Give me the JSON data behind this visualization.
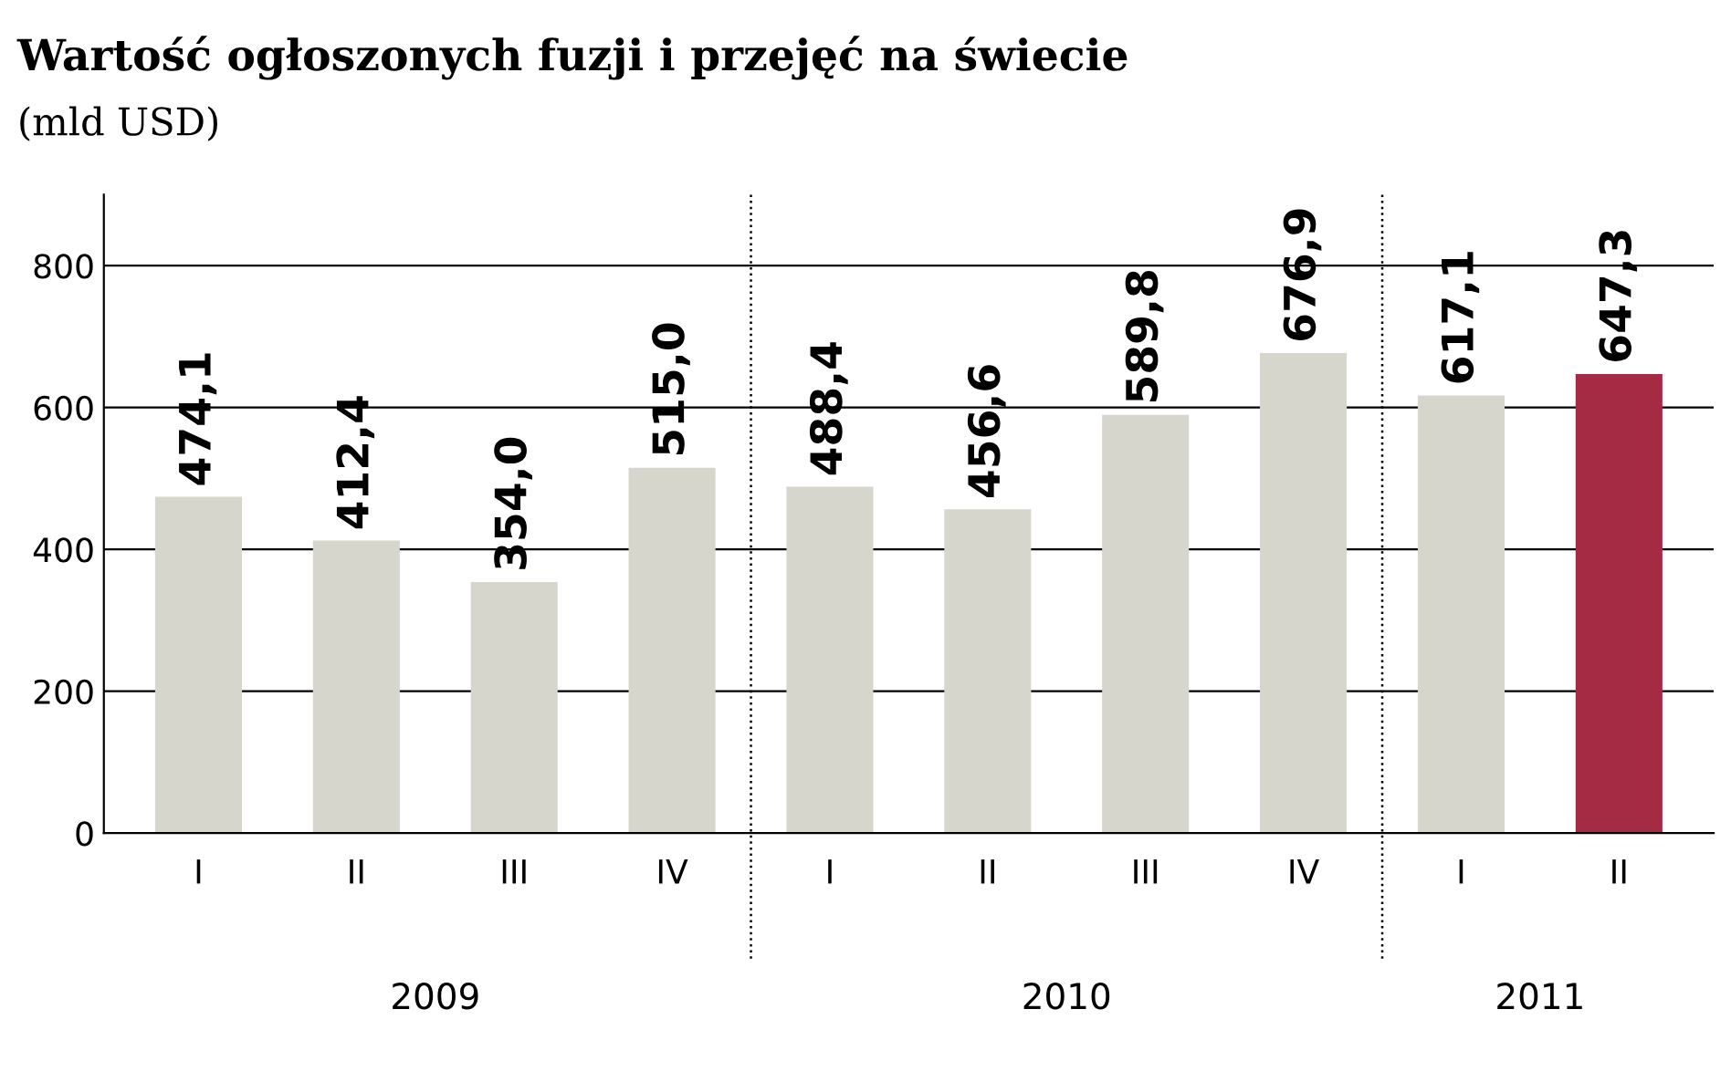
{
  "chart_data": {
    "type": "bar",
    "title": "Wartość ogłoszonych fuzji i przejęć na świecie",
    "subtitle": "(mld USD)",
    "categories": [
      "I",
      "II",
      "III",
      "IV",
      "I",
      "II",
      "III",
      "IV",
      "I",
      "II"
    ],
    "values": [
      474.1,
      412.4,
      354.0,
      515.0,
      488.4,
      456.6,
      589.8,
      676.9,
      617.1,
      647.3
    ],
    "value_labels": [
      "474,1",
      "412,4",
      "354,0",
      "515,0",
      "488,4",
      "456,6",
      "589,8",
      "676,9",
      "617,1",
      "647,3"
    ],
    "colors": [
      "#d6d6cc",
      "#d6d6cc",
      "#d6d6cc",
      "#d6d6cc",
      "#d6d6cc",
      "#d6d6cc",
      "#d6d6cc",
      "#d6d6cc",
      "#d6d6cc",
      "#a52a44"
    ],
    "annotations": [
      "2009",
      "2010",
      "2011"
    ],
    "ylim": [
      0,
      900
    ],
    "yticks": [
      0,
      200,
      400,
      600,
      800
    ],
    "grid": "y",
    "legend": false
  }
}
